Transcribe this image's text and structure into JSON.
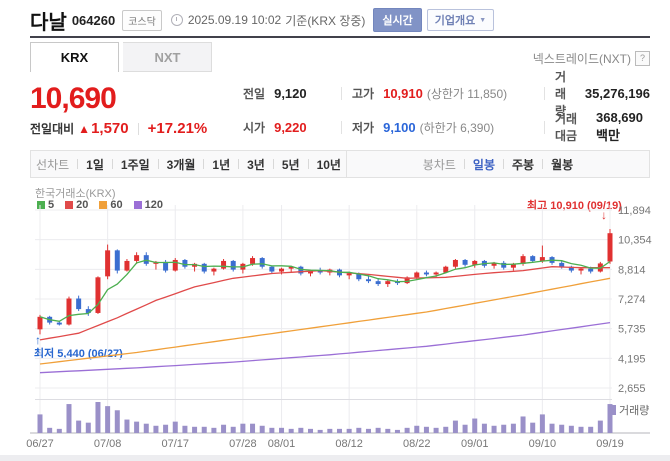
{
  "header": {
    "title": "다날",
    "code": "064260",
    "market_badge": "코스닥",
    "datetime": "2025.09.19 10:02",
    "basis": "기준(KRX 장중)",
    "realtime_button": "실시간",
    "overview_button": "기업개요"
  },
  "icons": {
    "caret_down": "▼",
    "help": "?",
    "change_up_arrow": "▲",
    "max_down_arrow": "↓",
    "min_up_arrow": "↑"
  },
  "tabs": {
    "items": [
      {
        "label": "KRX",
        "active": true
      },
      {
        "label": "NXT",
        "active": false
      }
    ],
    "right_label": "넥스트레이드(NXT)"
  },
  "quote": {
    "price": "10,690",
    "change_label": "전일대비",
    "change_value": "1,570",
    "change_percent": "+17.21%",
    "fields": [
      {
        "label": "전일",
        "value": "9,120",
        "color": "dark",
        "extra": ""
      },
      {
        "label": "고가",
        "value": "10,910",
        "color": "red",
        "extra": "(상한가 11,850)"
      },
      {
        "label": "거래량",
        "value": "35,276,196",
        "color": "dark",
        "extra": ""
      },
      {
        "label": "시가",
        "value": "9,220",
        "color": "red",
        "extra": ""
      },
      {
        "label": "저가",
        "value": "9,100",
        "color": "blue",
        "extra": "(하한가 6,390)"
      },
      {
        "label": "거래대금",
        "value": "368,690 백만",
        "color": "dark",
        "extra": ""
      }
    ]
  },
  "toolbar": {
    "line_label": "선차트",
    "periods": [
      "1일",
      "1주일",
      "3개월",
      "1년",
      "3년",
      "5년",
      "10년"
    ],
    "candle_label": "봉차트",
    "candle_modes": [
      {
        "label": "일봉",
        "active": true
      },
      {
        "label": "주봉",
        "active": false
      },
      {
        "label": "월봉",
        "active": false
      }
    ]
  },
  "chart_data": {
    "type": "candlestick+volume",
    "exchange_label": "한국거래소(KRX)",
    "legend": [
      {
        "label": "5",
        "color": "#4caf50"
      },
      {
        "label": "20",
        "color": "#e04a4a"
      },
      {
        "label": "60",
        "color": "#f0a03a"
      },
      {
        "label": "120",
        "color": "#9b6fd6"
      }
    ],
    "max_annotation": "최고 10,910 (09/19)",
    "min_annotation": "최저 5,440 (06/27)",
    "volume_label": "거래량",
    "y_axis": {
      "labels": [
        "11,894",
        "10,354",
        "8,814",
        "7,274",
        "5,735",
        "4,195",
        "2,655"
      ],
      "values": [
        11894,
        10354,
        8814,
        7274,
        5735,
        4195,
        2655
      ]
    },
    "x_ticks": [
      {
        "label": "06/27",
        "index": 0
      },
      {
        "label": "07/08",
        "index": 7
      },
      {
        "label": "07/17",
        "index": 14
      },
      {
        "label": "07/28",
        "index": 21
      },
      {
        "label": "08/01",
        "index": 25
      },
      {
        "label": "08/12",
        "index": 32
      },
      {
        "label": "08/22",
        "index": 39
      },
      {
        "label": "09/01",
        "index": 45
      },
      {
        "label": "09/10",
        "index": 52
      },
      {
        "label": "09/19",
        "index": 59
      }
    ],
    "candles": [
      [
        5700,
        6450,
        5440,
        6350,
        18
      ],
      [
        6350,
        6400,
        5950,
        6050,
        5
      ],
      [
        6050,
        6150,
        5900,
        5950,
        4
      ],
      [
        5950,
        7400,
        5900,
        7300,
        28
      ],
      [
        7300,
        7450,
        6650,
        6750,
        12
      ],
      [
        6750,
        6900,
        6400,
        6550,
        10
      ],
      [
        6550,
        8450,
        6500,
        8400,
        30
      ],
      [
        8450,
        10100,
        8300,
        9800,
        26
      ],
      [
        9800,
        9850,
        8600,
        8750,
        22
      ],
      [
        8750,
        9350,
        8700,
        9250,
        13
      ],
      [
        9250,
        9700,
        9100,
        9550,
        11
      ],
      [
        9550,
        9700,
        9000,
        9100,
        9
      ],
      [
        9100,
        9250,
        8800,
        9200,
        7
      ],
      [
        9200,
        9300,
        8650,
        8750,
        8
      ],
      [
        8750,
        9400,
        8700,
        9300,
        11
      ],
      [
        9300,
        9350,
        8850,
        8950,
        7
      ],
      [
        8950,
        9150,
        8700,
        9100,
        6
      ],
      [
        9100,
        9150,
        8600,
        8700,
        6
      ],
      [
        8700,
        8900,
        8500,
        8850,
        5
      ],
      [
        8850,
        9350,
        8800,
        9250,
        8
      ],
      [
        9250,
        9300,
        8700,
        8800,
        6
      ],
      [
        8800,
        9150,
        8600,
        9100,
        9
      ],
      [
        9100,
        9500,
        9000,
        9400,
        9
      ],
      [
        9400,
        9450,
        8850,
        8950,
        7
      ],
      [
        8950,
        9000,
        8600,
        8700,
        5
      ],
      [
        8700,
        8900,
        8550,
        8850,
        5
      ],
      [
        8850,
        9000,
        8650,
        8950,
        4
      ],
      [
        8950,
        9000,
        8500,
        8600,
        5
      ],
      [
        8600,
        8800,
        8450,
        8750,
        4
      ],
      [
        8750,
        8900,
        8550,
        8650,
        3
      ],
      [
        8650,
        8850,
        8500,
        8800,
        4
      ],
      [
        8800,
        8850,
        8400,
        8500,
        4
      ],
      [
        8500,
        8700,
        8300,
        8600,
        4
      ],
      [
        8600,
        8650,
        8200,
        8300,
        5
      ],
      [
        8300,
        8500,
        8100,
        8200,
        4
      ],
      [
        8200,
        8350,
        7950,
        8050,
        5
      ],
      [
        8050,
        8250,
        7900,
        8200,
        4
      ],
      [
        8200,
        8300,
        8000,
        8100,
        3
      ],
      [
        8100,
        8450,
        8050,
        8400,
        5
      ],
      [
        8400,
        8700,
        8300,
        8650,
        7
      ],
      [
        8650,
        8750,
        8450,
        8550,
        6
      ],
      [
        8550,
        8700,
        8400,
        8650,
        5
      ],
      [
        8650,
        9000,
        8600,
        8950,
        6
      ],
      [
        8950,
        9350,
        8850,
        9300,
        12
      ],
      [
        9300,
        9350,
        8950,
        9050,
        8
      ],
      [
        9050,
        9300,
        8900,
        9250,
        14
      ],
      [
        9250,
        9300,
        8900,
        9000,
        9
      ],
      [
        9000,
        9200,
        8850,
        9150,
        7
      ],
      [
        9150,
        9250,
        8800,
        8900,
        8
      ],
      [
        8900,
        9150,
        8750,
        9100,
        9
      ],
      [
        9100,
        9600,
        9000,
        9500,
        16
      ],
      [
        9500,
        9550,
        9150,
        9250,
        10
      ],
      [
        9250,
        10050,
        9150,
        9450,
        18
      ],
      [
        9450,
        9500,
        9050,
        9150,
        9
      ],
      [
        9150,
        9250,
        8850,
        8950,
        8
      ],
      [
        8950,
        9000,
        8650,
        8750,
        7
      ],
      [
        8750,
        8900,
        8550,
        8850,
        6
      ],
      [
        8850,
        8950,
        8600,
        8700,
        6
      ],
      [
        8700,
        9200,
        8650,
        9120,
        12
      ],
      [
        9220,
        10910,
        9100,
        10690,
        28
      ]
    ],
    "moving_averages": [
      {
        "period": "5",
        "color": "#4caf50",
        "source": "close"
      },
      {
        "period": "20",
        "color": "#e04a4a",
        "points": [
          [
            0,
            5150
          ],
          [
            4,
            5500
          ],
          [
            8,
            6300
          ],
          [
            12,
            7200
          ],
          [
            16,
            7900
          ],
          [
            20,
            8350
          ],
          [
            24,
            8600
          ],
          [
            29,
            8750
          ],
          [
            34,
            8550
          ],
          [
            38,
            8350
          ],
          [
            42,
            8400
          ],
          [
            46,
            8600
          ],
          [
            50,
            8750
          ],
          [
            53,
            8950
          ],
          [
            56,
            8900
          ],
          [
            59,
            8900
          ]
        ]
      },
      {
        "period": "60",
        "color": "#f0a03a",
        "points": [
          [
            0,
            3900
          ],
          [
            10,
            4500
          ],
          [
            20,
            5200
          ],
          [
            30,
            5900
          ],
          [
            40,
            6600
          ],
          [
            50,
            7500
          ],
          [
            59,
            8350
          ]
        ]
      },
      {
        "period": "120",
        "color": "#9b6fd6",
        "points": [
          [
            0,
            3450
          ],
          [
            10,
            3700
          ],
          [
            20,
            4000
          ],
          [
            30,
            4380
          ],
          [
            40,
            4820
          ],
          [
            50,
            5400
          ],
          [
            59,
            6050
          ]
        ]
      }
    ],
    "colors": {
      "up": "#e03131",
      "down": "#3b6ed0",
      "volume": "#9a90c8",
      "grid": "#ececef",
      "pane_divider": "#dddde2",
      "axis": "#b5b5bb",
      "tick_text": "#777777"
    }
  }
}
